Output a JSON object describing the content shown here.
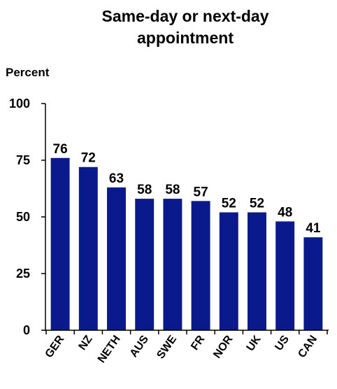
{
  "chart_data": {
    "type": "bar",
    "title_lines": [
      "Same-day or next-day",
      "appointment"
    ],
    "ylabel": "Percent",
    "xlabel": "",
    "ylim": [
      0,
      100
    ],
    "yticks": [
      0,
      25,
      50,
      75,
      100
    ],
    "categories": [
      "GER",
      "NZ",
      "NETH",
      "AUS",
      "SWE",
      "FR",
      "NOR",
      "UK",
      "US",
      "CAN"
    ],
    "values": [
      76,
      72,
      63,
      58,
      58,
      57,
      52,
      52,
      48,
      41
    ],
    "bar_color": "#0a1a8c",
    "grid": false,
    "legend": "none"
  }
}
